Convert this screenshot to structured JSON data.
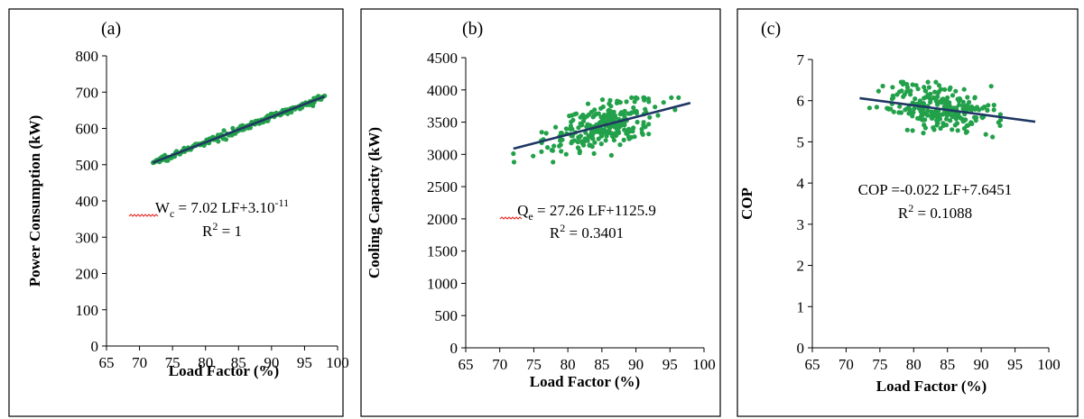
{
  "chart_data": [
    {
      "type": "scatter",
      "panel_label": "(a)",
      "xlabel": "Load Factor (%)",
      "ylabel": "Power Consumption (kW)",
      "xlim": [
        65,
        100
      ],
      "ylim": [
        0,
        800
      ],
      "x_ticks": [
        "65",
        "70",
        "75",
        "80",
        "85",
        "90",
        "95",
        "100"
      ],
      "y_ticks": [
        "0",
        "100",
        "200",
        "300",
        "400",
        "500",
        "600",
        "700",
        "800"
      ],
      "grid": false,
      "legend": "none",
      "marker_color": "#22a14a",
      "trendline_color": "#1f3864",
      "trendline": {
        "slope": 7.02,
        "intercept": 0,
        "x_start": 72,
        "x_end": 98
      },
      "equation": {
        "symbol": "W",
        "subscript": "c",
        "rest": " = 7.02 LF+3.10",
        "superscript": "-11",
        "r2_label": "R",
        "r2_sup": "2",
        "r2_value": " = 1"
      },
      "points": {
        "generator": "linear_band",
        "count": 230,
        "x_range": [
          72,
          98
        ],
        "y_spread": 4
      }
    },
    {
      "type": "scatter",
      "panel_label": "(b)",
      "xlabel": "Load Factor (%)",
      "ylabel": "Cooling Capacity (kW)",
      "xlim": [
        65,
        100
      ],
      "ylim": [
        0,
        4500
      ],
      "x_ticks": [
        "65",
        "70",
        "75",
        "80",
        "85",
        "90",
        "95",
        "100"
      ],
      "y_ticks": [
        "0",
        "500",
        "1000",
        "1500",
        "2000",
        "2500",
        "3000",
        "3500",
        "4000",
        "4500"
      ],
      "grid": false,
      "legend": "none",
      "marker_color": "#22a14a",
      "trendline_color": "#1f3864",
      "trendline": {
        "slope": 27.26,
        "intercept": 1125.9,
        "x_start": 72,
        "x_end": 98
      },
      "equation": {
        "symbol": "Q",
        "subscript": "e",
        "rest": " = 27.26 LF+1125.9",
        "superscript": "",
        "r2_label": "R",
        "r2_sup": "2",
        "r2_value": " = 0.3401"
      },
      "points": {
        "generator": "cloud",
        "count": 260,
        "x_center": 85,
        "x_sd": 4,
        "x_range": [
          72,
          98
        ],
        "y_sd": 190,
        "y_range": [
          2880,
          3880
        ]
      }
    },
    {
      "type": "scatter",
      "panel_label": "(c)",
      "xlabel": "Load Factor (%)",
      "ylabel": "COP",
      "xlim": [
        65,
        100
      ],
      "ylim": [
        0,
        7
      ],
      "x_ticks": [
        "65",
        "70",
        "75",
        "80",
        "85",
        "90",
        "95",
        "100"
      ],
      "y_ticks": [
        "0",
        "1",
        "2",
        "3",
        "4",
        "5",
        "6",
        "7"
      ],
      "grid": false,
      "legend": "none",
      "marker_color": "#22a14a",
      "trendline_color": "#1f3864",
      "trendline": {
        "slope": -0.022,
        "intercept": 7.6451,
        "x_start": 72,
        "x_end": 98
      },
      "equation": {
        "symbol": "COP",
        "subscript": "",
        "rest": " =-0.022 LF+7.6451",
        "superscript": "",
        "r2_label": "R",
        "r2_sup": "2",
        "r2_value": " = 0.1088"
      },
      "points": {
        "generator": "cloud",
        "count": 260,
        "x_center": 84,
        "x_sd": 4,
        "x_range": [
          72,
          98
        ],
        "y_sd": 0.28,
        "y_range": [
          5.0,
          6.45
        ]
      }
    }
  ]
}
